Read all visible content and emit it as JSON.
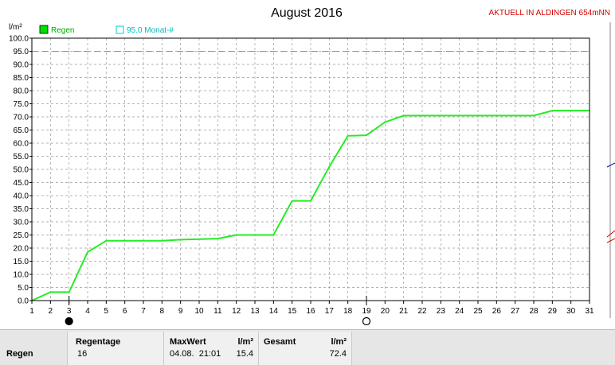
{
  "chart_data": {
    "type": "line",
    "title": "August 2016",
    "station": "AKTUELL IN ALDINGEN 654mNN",
    "ylabel": "l/m²",
    "ylim": [
      0,
      100
    ],
    "yticks": [
      "0.0",
      "5.0",
      "10.0",
      "15.0",
      "20.0",
      "25.0",
      "30.0",
      "35.0",
      "40.0",
      "45.0",
      "50.0",
      "55.0",
      "60.0",
      "65.0",
      "70.0",
      "75.0",
      "80.0",
      "85.0",
      "90.0",
      "95.0",
      "100.0"
    ],
    "xlim": [
      1,
      31
    ],
    "categories": [
      1,
      2,
      3,
      4,
      5,
      6,
      7,
      8,
      9,
      10,
      11,
      12,
      13,
      14,
      15,
      16,
      17,
      18,
      19,
      20,
      21,
      22,
      23,
      24,
      25,
      26,
      27,
      28,
      29,
      30,
      31
    ],
    "grid": true,
    "legend": [
      {
        "name": "Regen",
        "color": "#00e000"
      },
      {
        "name": "95.0 Monat-#",
        "color": "#00cccc"
      }
    ],
    "reference_line": {
      "name": "95.0 Monat-#",
      "value": 95.0,
      "color": "#00cccc"
    },
    "series": [
      {
        "name": "Regen",
        "color": "#22ee22",
        "points": [
          [
            1,
            0.0
          ],
          [
            2,
            3.2
          ],
          [
            3,
            3.2
          ],
          [
            4,
            18.5
          ],
          [
            5,
            22.8
          ],
          [
            6,
            22.8
          ],
          [
            7,
            22.8
          ],
          [
            8,
            22.8
          ],
          [
            9,
            23.2
          ],
          [
            10,
            23.4
          ],
          [
            11,
            23.6
          ],
          [
            12,
            25.0
          ],
          [
            13,
            25.0
          ],
          [
            14,
            25.0
          ],
          [
            15,
            38.0
          ],
          [
            16,
            38.0
          ],
          [
            17,
            51.0
          ],
          [
            18,
            62.8
          ],
          [
            19,
            63.0
          ],
          [
            20,
            68.0
          ],
          [
            21,
            70.5
          ],
          [
            22,
            70.5
          ],
          [
            23,
            70.5
          ],
          [
            24,
            70.5
          ],
          [
            25,
            70.5
          ],
          [
            26,
            70.5
          ],
          [
            27,
            70.5
          ],
          [
            28,
            70.5
          ],
          [
            29,
            72.4
          ],
          [
            30,
            72.4
          ],
          [
            31,
            72.4
          ]
        ]
      }
    ],
    "markers": [
      {
        "day": 3,
        "symbol": "●"
      },
      {
        "day": 19,
        "symbol": "○"
      }
    ]
  },
  "stats": {
    "row_label": "Regen",
    "regentage_label": "Regentage",
    "regentage_value": "16",
    "maxwert_label": "MaxWert",
    "maxwert_unit": "l/m²",
    "maxwert_date": "04.08.  21:01",
    "maxwert_value": "15.4",
    "gesamt_label": "Gesamt",
    "gesamt_unit": "l/m²",
    "gesamt_value": "72.4"
  }
}
